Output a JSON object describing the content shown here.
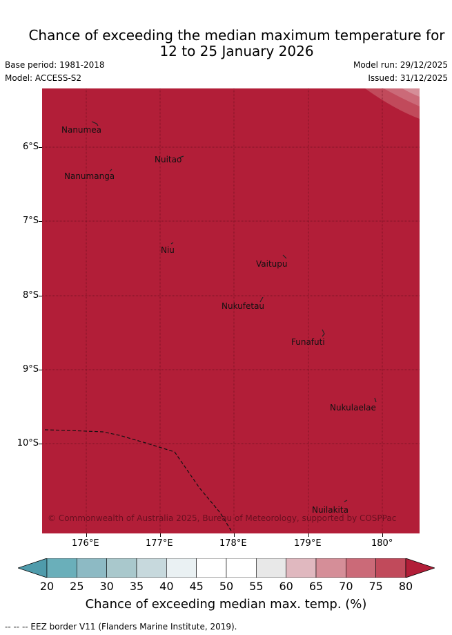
{
  "title": {
    "line1": "Chance of exceeding the median maximum temperature for",
    "line2": "12 to 25 January 2026"
  },
  "meta": {
    "base_period": "Base period: 1981-2018",
    "model": "Model: ACCESS-S2",
    "model_run": "Model run: 29/12/2025",
    "issued": "Issued: 31/12/2025"
  },
  "map": {
    "fill_color": "#b21e38",
    "lat_ticks": [
      "6°S",
      "7°S",
      "8°S",
      "9°S",
      "10°S"
    ],
    "lon_ticks": [
      "176°E",
      "177°E",
      "178°E",
      "179°E",
      "180°"
    ],
    "places": [
      "Nanumea",
      "Nuitao",
      "Nanumanga",
      "Niu",
      "Vaitupu",
      "Nukufetau",
      "Funafuti",
      "Nukulaelae",
      "Nuilakita"
    ],
    "copyright": "© Commonwealth of Australia 2025, Bureau of Meteorology, supported by COSPPac"
  },
  "colorbar": {
    "title": "Chance of exceeding median max. temp. (%)",
    "labels": [
      "20",
      "25",
      "30",
      "35",
      "40",
      "45",
      "50",
      "55",
      "60",
      "65",
      "70",
      "75",
      "80"
    ],
    "colors": [
      "#4f9bab",
      "#6aafba",
      "#8dbac4",
      "#a9c8cc",
      "#c7d9dd",
      "#eaf1f3",
      "#ffffff",
      "#ffffff",
      "#e8e8e8",
      "#e0b8bf",
      "#d58e98",
      "#cb6a78",
      "#c14a5b",
      "#b21e38"
    ]
  },
  "footnote": "--  --  -- EEZ border V11 (Flanders Marine Institute, 2019)."
}
